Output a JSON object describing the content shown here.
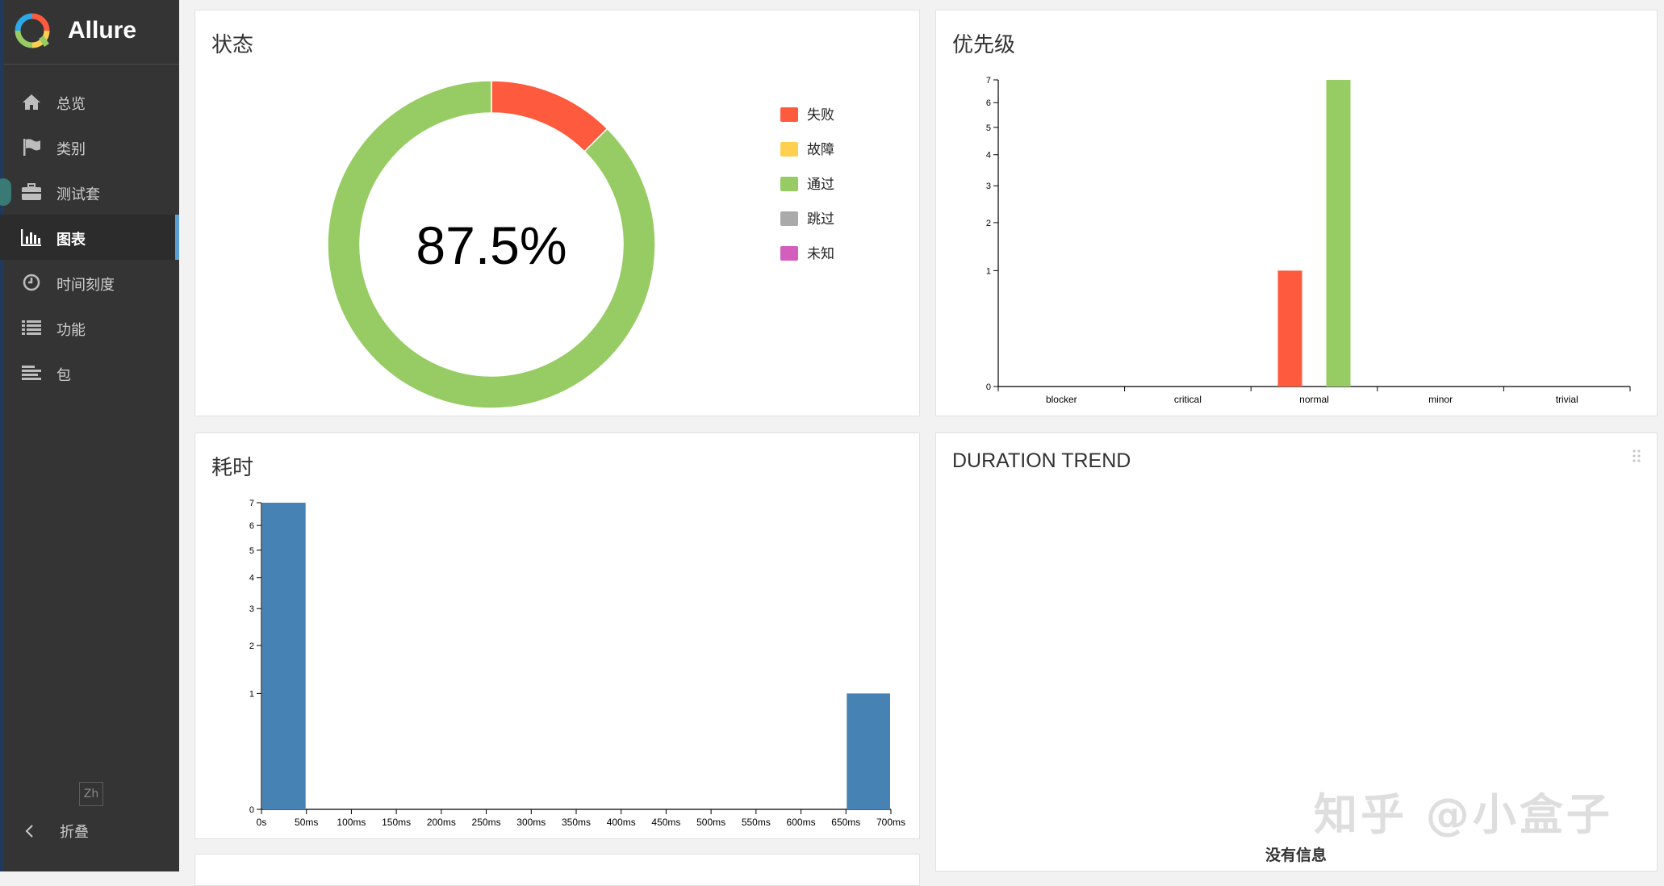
{
  "app": {
    "name": "Allure"
  },
  "sidebar": {
    "items": [
      {
        "label": "总览",
        "icon": "home-icon",
        "active": false
      },
      {
        "label": "类别",
        "icon": "flag-icon",
        "active": false
      },
      {
        "label": "测试套",
        "icon": "briefcase-icon",
        "active": false
      },
      {
        "label": "图表",
        "icon": "bar-chart-icon",
        "active": true
      },
      {
        "label": "时间刻度",
        "icon": "clock-icon",
        "active": false
      },
      {
        "label": "功能",
        "icon": "list-icon",
        "active": false
      },
      {
        "label": "包",
        "icon": "align-left-icon",
        "active": false
      }
    ],
    "lang": "Zh",
    "collapse_label": "折叠"
  },
  "widgets": {
    "status": {
      "title": "状态",
      "center_label": "87.5%",
      "legend": [
        {
          "label": "失败",
          "color": "#fd5a3e"
        },
        {
          "label": "故障",
          "color": "#ffd050"
        },
        {
          "label": "通过",
          "color": "#97cc64"
        },
        {
          "label": "跳过",
          "color": "#aaaaaa"
        },
        {
          "label": "未知",
          "color": "#d35ebe"
        }
      ]
    },
    "severity": {
      "title": "优先级"
    },
    "duration": {
      "title": "耗时"
    },
    "duration_trend": {
      "title": "DURATION TREND",
      "empty_text": "没有信息"
    }
  },
  "watermark": "知乎 @小盒子",
  "chart_data": [
    {
      "type": "pie",
      "labels": [
        "失败",
        "故障",
        "通过",
        "跳过",
        "未知"
      ],
      "values": [
        1,
        0,
        7,
        0,
        0
      ],
      "colors": [
        "#fd5a3e",
        "#ffd050",
        "#97cc64",
        "#aaaaaa",
        "#d35ebe"
      ],
      "center_text": "87.5%",
      "title": "状态"
    },
    {
      "type": "bar",
      "title": "优先级",
      "categories": [
        "blocker",
        "critical",
        "normal",
        "minor",
        "trivial"
      ],
      "series": [
        {
          "name": "失败",
          "color": "#fd5a3e",
          "values": [
            0,
            0,
            1,
            0,
            0
          ]
        },
        {
          "name": "通过",
          "color": "#97cc64",
          "values": [
            0,
            0,
            7,
            0,
            0
          ]
        }
      ],
      "yticks": [
        0,
        1,
        2,
        3,
        4,
        5,
        6,
        7
      ],
      "ylim": [
        0,
        7
      ],
      "yscale": "sqrt"
    },
    {
      "type": "bar",
      "title": "耗时",
      "x_ticks": [
        "0s",
        "50ms",
        "100ms",
        "150ms",
        "200ms",
        "250ms",
        "300ms",
        "350ms",
        "400ms",
        "450ms",
        "500ms",
        "550ms",
        "600ms",
        "650ms",
        "700ms"
      ],
      "bins": [
        {
          "from": "0s",
          "to": "50ms",
          "value": 7
        },
        {
          "from": "650ms",
          "to": "700ms",
          "value": 1
        }
      ],
      "color": "#4682b4",
      "yticks": [
        0,
        1,
        2,
        3,
        4,
        5,
        6,
        7
      ],
      "ylim": [
        0,
        7
      ],
      "yscale": "sqrt"
    }
  ]
}
